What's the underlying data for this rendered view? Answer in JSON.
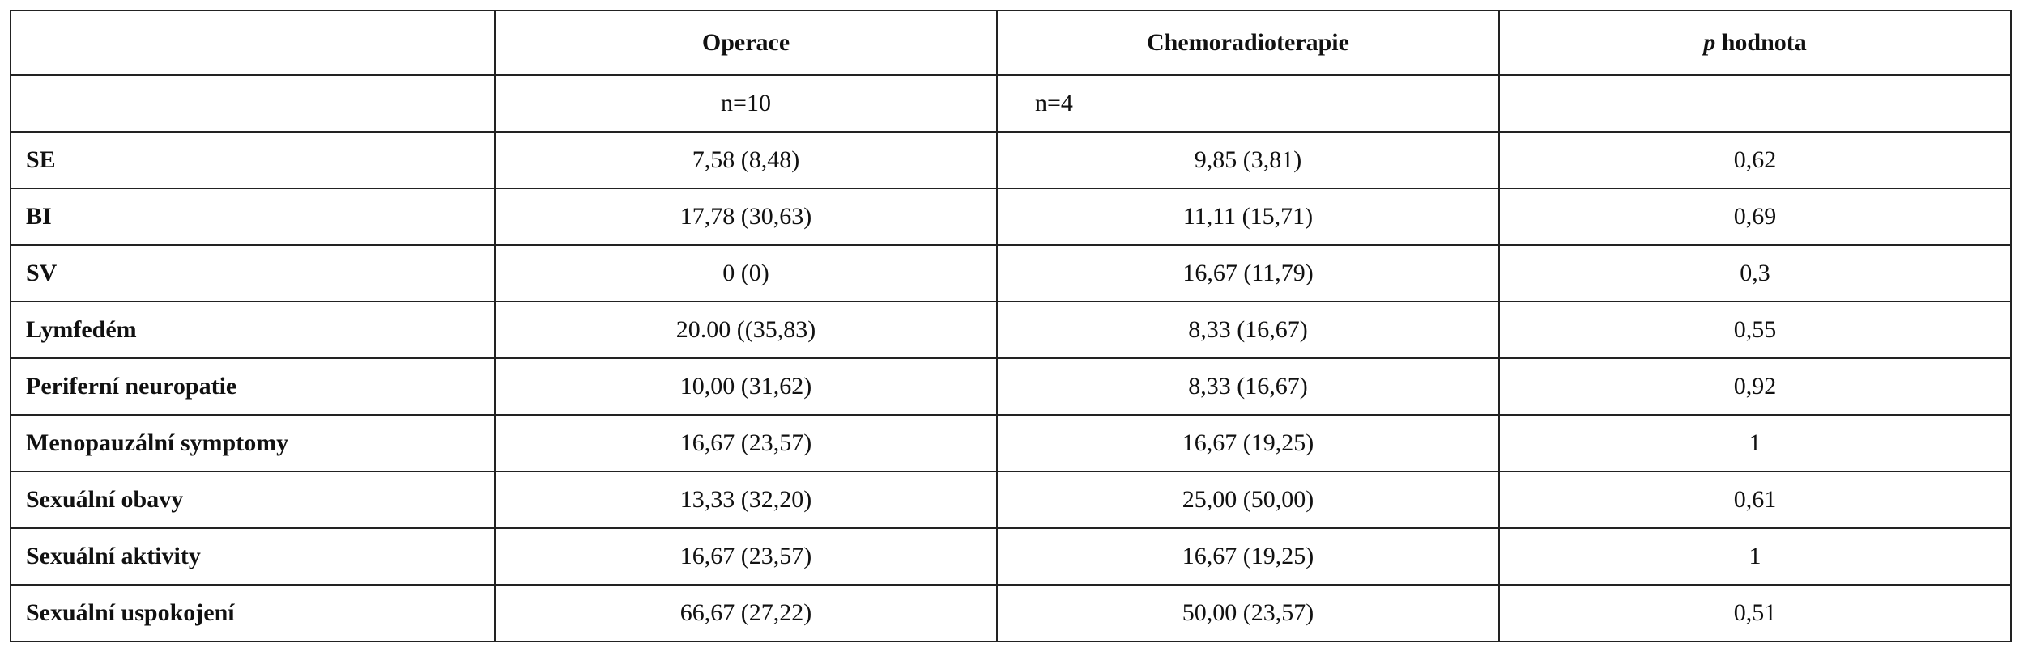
{
  "table": {
    "headers": {
      "col0": "",
      "col1": "Operace",
      "col2": "Chemoradioterapie",
      "col3_italic": "p",
      "col3_rest": " hodnota"
    },
    "subheader": {
      "col0": "",
      "col1": "n=10",
      "col2": "n=4",
      "col3": ""
    },
    "rows": [
      {
        "label": "SE",
        "operace": "7,58  (8,48)",
        "chemo": "9,85  (3,81)",
        "p": "0,62"
      },
      {
        "label": "BI",
        "operace": "17,78  (30,63)",
        "chemo": "11,11 (15,71)",
        "p": "0,69"
      },
      {
        "label": "SV",
        "operace": "0  (0)",
        "chemo": "16,67 (11,79)",
        "p": "0,3"
      },
      {
        "label": "Lymfedém",
        "operace": "20.00 ((35,83)",
        "chemo": "8,33 (16,67)",
        "p": "0,55"
      },
      {
        "label": "Periferní neuropatie",
        "operace": "10,00  (31,62)",
        "chemo": "8,33 (16,67)",
        "p": "0,92"
      },
      {
        "label": "Menopauzální symptomy",
        "operace": "16,67  (23,57)",
        "chemo": "16,67 (19,25)",
        "p": "1"
      },
      {
        "label": "Sexuální obavy",
        "operace": "13,33  (32,20)",
        "chemo": "25,00  (50,00)",
        "p": "0,61"
      },
      {
        "label": "Sexuální aktivity",
        "operace": "16,67  (23,57)",
        "chemo": "16,67 (19,25)",
        "p": "1"
      },
      {
        "label": "Sexuální uspokojení",
        "operace": "66,67  (27,22)",
        "chemo": "50,00 (23,57)",
        "p": "0,51"
      }
    ]
  }
}
